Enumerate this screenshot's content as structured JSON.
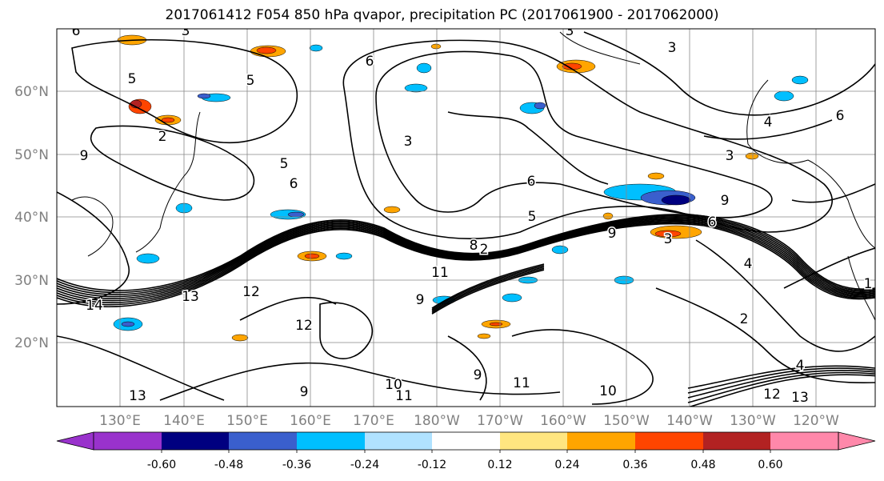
{
  "title": "2017061412 F054 850 hPa qvapor, precipitation PC (2017061900 - 2017062000)",
  "lat_labels": [
    "60°N",
    "50°N",
    "40°N",
    "30°N",
    "20°N"
  ],
  "lon_labels": [
    "130°E",
    "140°E",
    "150°E",
    "160°E",
    "170°E",
    "180°W",
    "170°W",
    "160°W",
    "150°W",
    "140°W",
    "130°W",
    "120°W"
  ],
  "contour_labels": [
    "6",
    "3",
    "5",
    "5",
    "6",
    "3",
    "3",
    "4",
    "6",
    "3",
    "9",
    "2",
    "5",
    "6",
    "3",
    "8",
    "6",
    "5",
    "2",
    "3",
    "6",
    "9",
    "4",
    "1",
    "13",
    "12",
    "14",
    "9",
    "11",
    "9",
    "2",
    "4",
    "10",
    "12",
    "13",
    "11",
    "9",
    "13",
    "10",
    "11",
    "12",
    "9"
  ],
  "colorbar": {
    "colors": [
      "#9932cc",
      "#000080",
      "#3a5fcd",
      "#00bfff",
      "#b0e2ff",
      "#ffffff",
      "#ffe680",
      "#ffa500",
      "#ff4500",
      "#b22222",
      "#ff88aa"
    ],
    "tick_labels": [
      "-0.60",
      "-0.48",
      "-0.36",
      "-0.24",
      "-0.12",
      "0.12",
      "0.24",
      "0.36",
      "0.48",
      "0.60"
    ]
  },
  "label_color": "#808080"
}
